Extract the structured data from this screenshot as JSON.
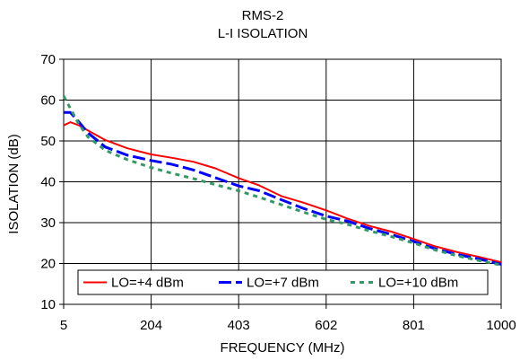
{
  "chart_data": {
    "type": "line",
    "title": "RMS-2",
    "subtitle": "L-I ISOLATION",
    "xlabel": "FREQUENCY (MHz)",
    "ylabel": "ISOLATION (dB)",
    "xlim": [
      5,
      1000
    ],
    "ylim": [
      10,
      70
    ],
    "xticks": [
      5,
      204,
      403,
      602,
      801,
      1000
    ],
    "yticks": [
      10,
      20,
      30,
      40,
      50,
      60,
      70
    ],
    "grid": true,
    "legend_position": "bottom",
    "series": [
      {
        "name": "LO=+4 dBm",
        "color": "#ff0000",
        "style": "solid",
        "x": [
          5,
          20,
          40,
          60,
          100,
          150,
          204,
          250,
          300,
          350,
          403,
          450,
          500,
          550,
          602,
          650,
          700,
          750,
          801,
          850,
          900,
          950,
          1000
        ],
        "y": [
          53.8,
          54.6,
          53.8,
          52.6,
          50.2,
          48.2,
          46.7,
          45.9,
          44.9,
          43.3,
          40.9,
          39.1,
          36.5,
          34.9,
          33.0,
          31.0,
          29.2,
          27.8,
          26.0,
          24.2,
          22.8,
          21.6,
          20.3
        ]
      },
      {
        "name": "LO=+7 dBm",
        "color": "#0000ff",
        "style": "dash",
        "x": [
          5,
          20,
          40,
          60,
          100,
          150,
          204,
          250,
          300,
          350,
          403,
          450,
          500,
          550,
          602,
          650,
          700,
          750,
          801,
          850,
          900,
          950,
          1000
        ],
        "y": [
          57.0,
          57.0,
          54.6,
          52.0,
          48.5,
          46.5,
          45.2,
          44.3,
          42.9,
          41.0,
          39.0,
          37.8,
          35.6,
          33.5,
          31.6,
          30.4,
          28.6,
          27.1,
          25.4,
          23.6,
          22.2,
          21.1,
          19.8
        ]
      },
      {
        "name": "LO=+10 dBm",
        "color": "#339966",
        "style": "dot",
        "x": [
          5,
          20,
          40,
          60,
          100,
          150,
          204,
          250,
          300,
          350,
          403,
          450,
          500,
          550,
          602,
          650,
          700,
          750,
          801,
          850,
          900,
          950,
          1000
        ],
        "y": [
          61.0,
          58.0,
          54.0,
          51.0,
          47.7,
          45.4,
          43.5,
          42.1,
          40.8,
          39.3,
          37.8,
          36.2,
          34.4,
          32.6,
          30.8,
          29.6,
          28.0,
          26.6,
          25.0,
          23.3,
          21.9,
          20.7,
          19.6
        ]
      }
    ]
  }
}
